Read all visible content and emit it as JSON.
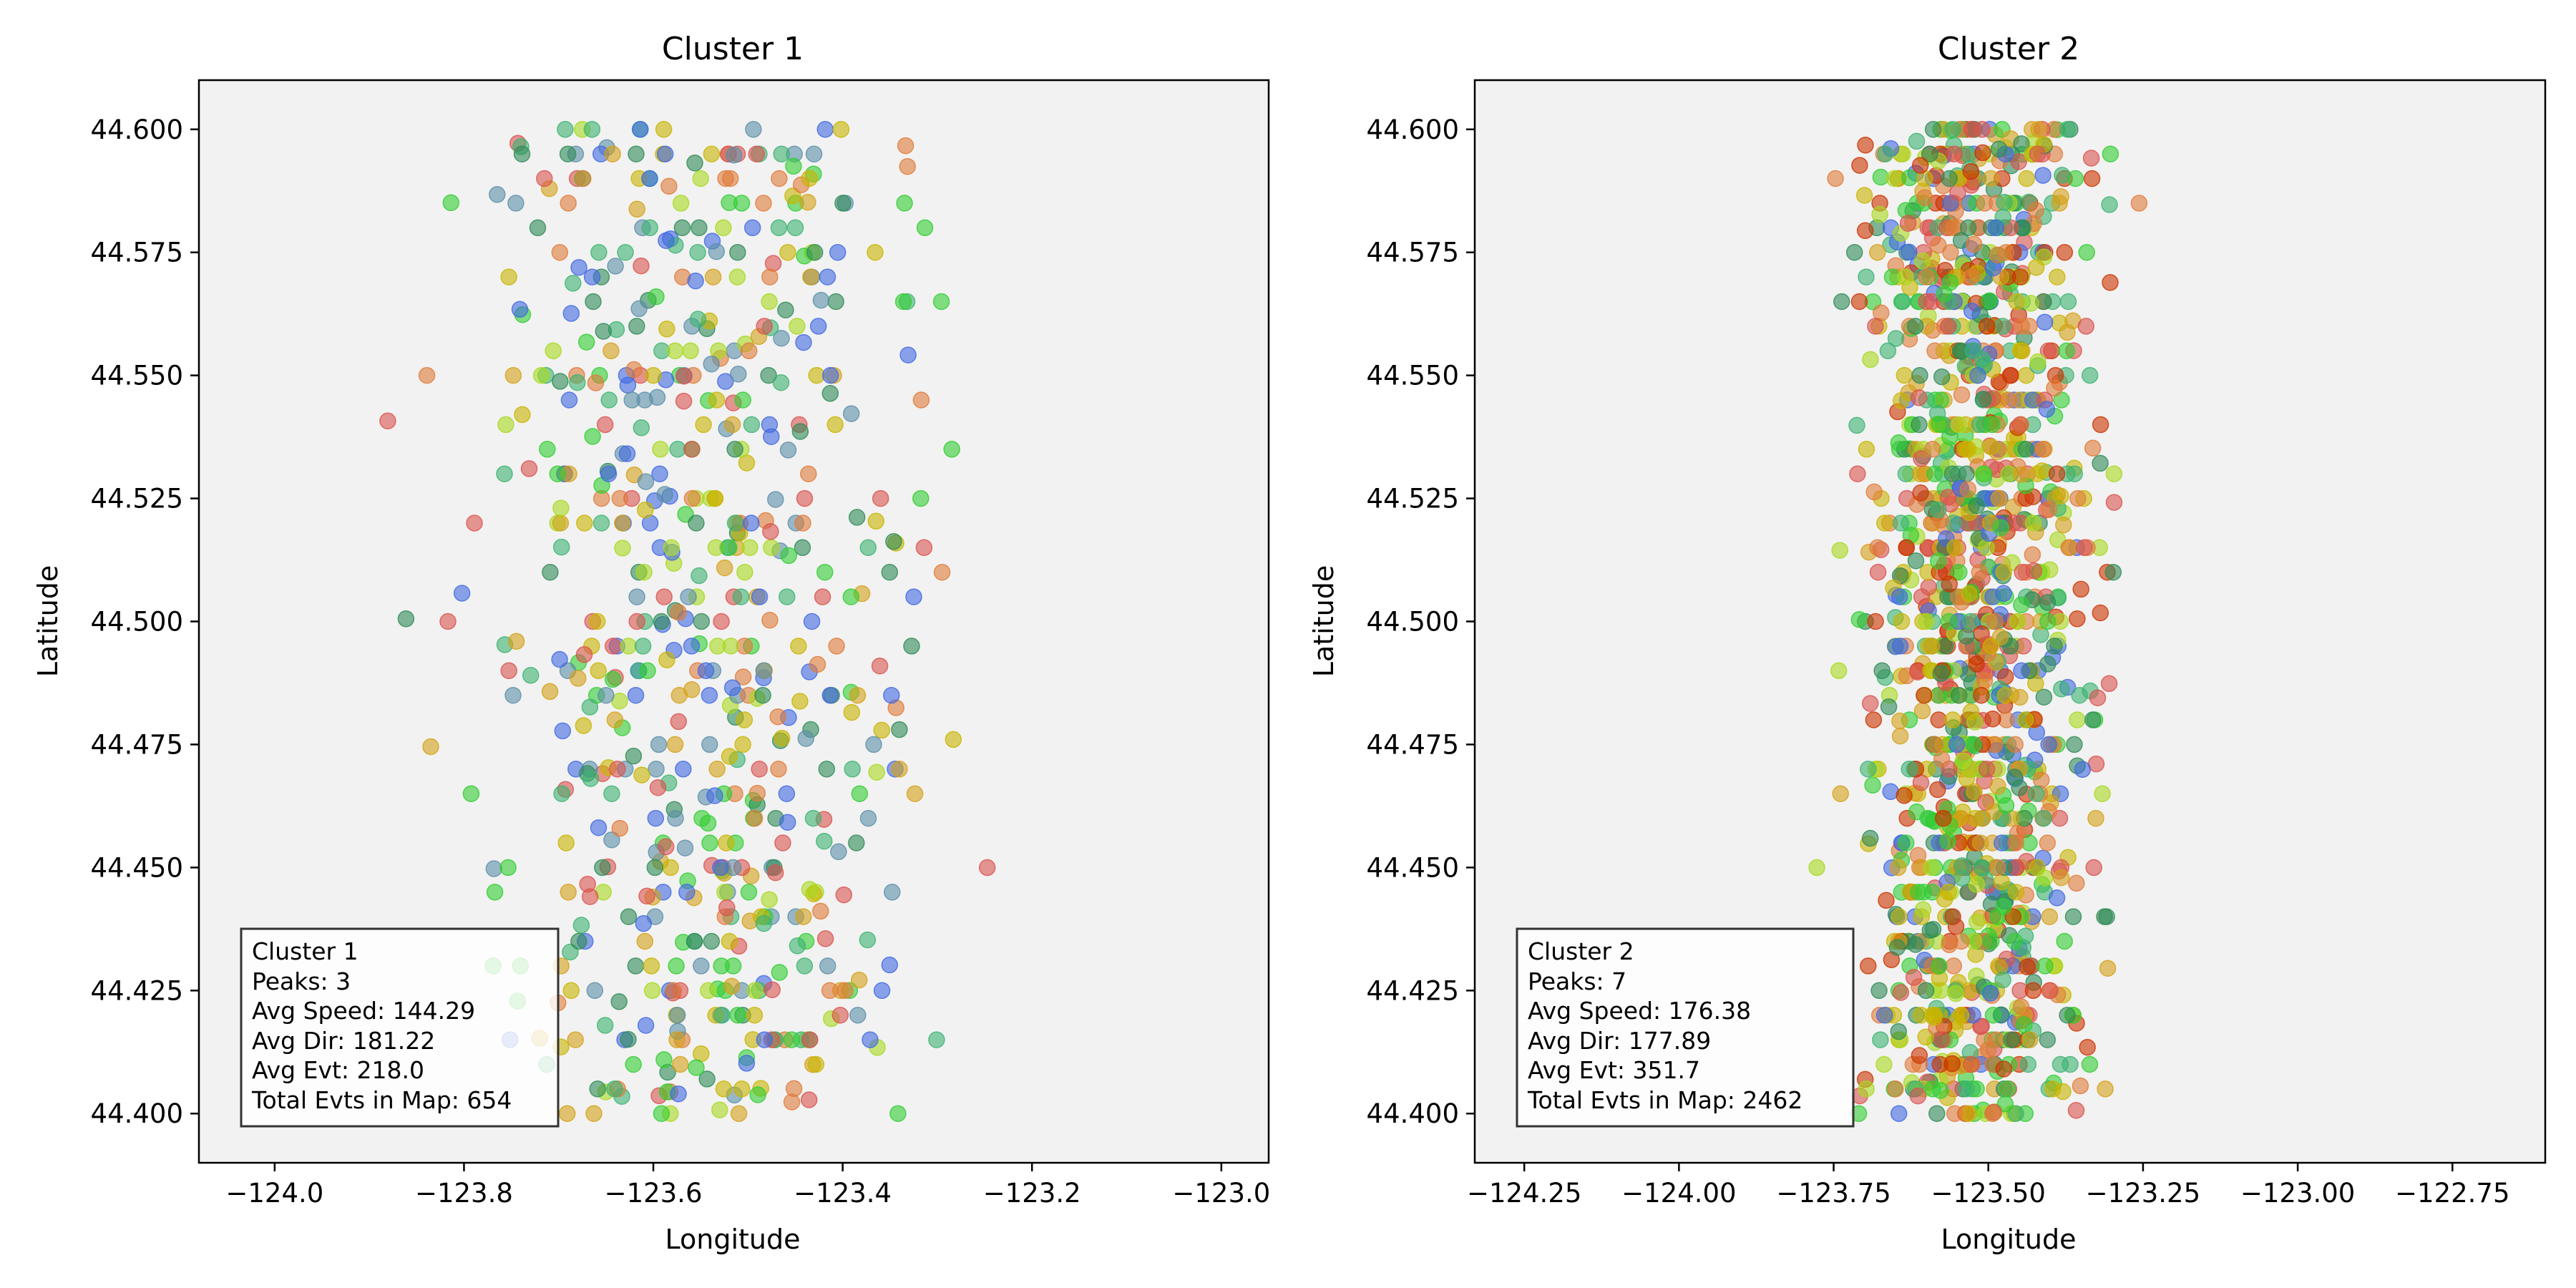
{
  "chart_data": [
    {
      "type": "scatter",
      "title": "Cluster 1",
      "xlabel": "Longitude",
      "ylabel": "Latitude",
      "xlim": [
        -124.08,
        -122.95
      ],
      "ylim": [
        44.39,
        44.61
      ],
      "xticks": [
        "−124.0",
        "−123.8",
        "−123.6",
        "−123.4",
        "−123.2",
        "−123.0"
      ],
      "xtick_values": [
        -124.0,
        -123.8,
        -123.6,
        -123.4,
        -123.2,
        -123.0
      ],
      "yticks": [
        "44.400",
        "44.425",
        "44.450",
        "44.475",
        "44.500",
        "44.525",
        "44.550",
        "44.575",
        "44.600"
      ],
      "ytick_values": [
        44.4,
        44.425,
        44.45,
        44.475,
        44.5,
        44.525,
        44.55,
        44.575,
        44.6
      ],
      "grid": false,
      "background": "#f2f2f2",
      "point_colors": [
        "#2e8b57",
        "#3cb371",
        "#4169e1",
        "#d9534f",
        "#e07b39",
        "#c8b400",
        "#a8d820",
        "#32cd32",
        "#d4a017",
        "#5b8fa8"
      ],
      "x_center": -123.55,
      "x_spread": 0.16,
      "point_count": 654,
      "stats": {
        "name": "Cluster 1",
        "peaks": "Peaks: 3",
        "avg_speed": "Avg Speed: 144.29",
        "avg_dir": "Avg Dir: 181.22",
        "avg_evt": "Avg Evt: 218.0",
        "total": "Total Evts in Map: 654"
      }
    },
    {
      "type": "scatter",
      "title": "Cluster 2",
      "xlabel": "Longitude",
      "ylabel": "Latitude",
      "xlim": [
        -124.33,
        -122.6
      ],
      "ylim": [
        44.39,
        44.61
      ],
      "xticks": [
        "−124.25",
        "−124.00",
        "−123.75",
        "−123.50",
        "−123.25",
        "−123.00",
        "−122.75"
      ],
      "xtick_values": [
        -124.25,
        -124.0,
        -123.75,
        -123.5,
        -123.25,
        -123.0,
        -122.75
      ],
      "yticks": [
        "44.400",
        "44.425",
        "44.450",
        "44.475",
        "44.500",
        "44.525",
        "44.550",
        "44.575",
        "44.600"
      ],
      "ytick_values": [
        44.4,
        44.425,
        44.45,
        44.475,
        44.5,
        44.525,
        44.55,
        44.575,
        44.6
      ],
      "grid": false,
      "background": "#f2f2f2",
      "point_colors": [
        "#2e8b57",
        "#3cb371",
        "#4169e1",
        "#d9534f",
        "#e07b39",
        "#c8b400",
        "#a8d820",
        "#32cd32",
        "#d4a017",
        "#cc3300"
      ],
      "x_center": -123.52,
      "x_spread": 0.13,
      "point_count": 2462,
      "stats": {
        "name": "Cluster 2",
        "peaks": "Peaks: 7",
        "avg_speed": "Avg Speed: 176.38",
        "avg_dir": "Avg Dir: 177.89",
        "avg_evt": "Avg Evt: 351.7",
        "total": "Total Evts in Map: 2462"
      }
    }
  ]
}
